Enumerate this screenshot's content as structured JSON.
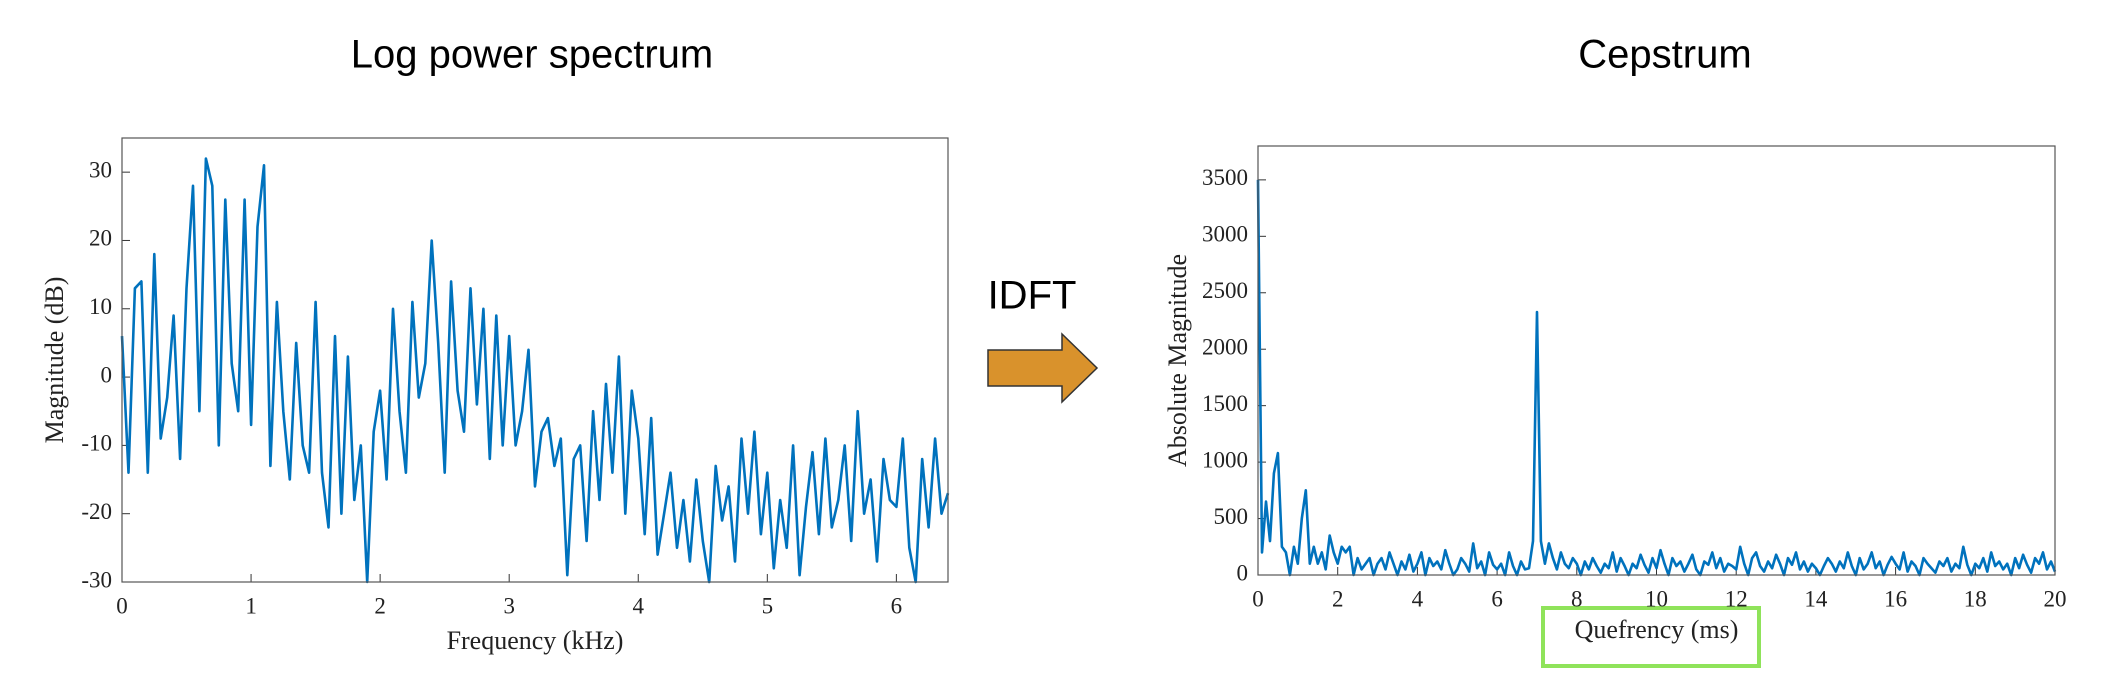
{
  "chart_data": [
    {
      "type": "line",
      "title": "Log power spectrum",
      "x_label": "Frequency (kHz)",
      "y_label": "Magnitude (dB)",
      "xlim": [
        0,
        6.4
      ],
      "xticks": [
        0,
        1,
        2,
        3,
        4,
        5,
        6
      ],
      "ylim": [
        -30,
        35
      ],
      "yticks": [
        -30,
        -20,
        -10,
        0,
        10,
        20,
        30
      ],
      "series": [
        {
          "name": "Log power spectrum",
          "color": "#0072bd",
          "x": [
            0,
            0.05,
            0.1,
            0.15,
            0.2,
            0.25,
            0.3,
            0.35,
            0.4,
            0.45,
            0.5,
            0.55,
            0.6,
            0.65,
            0.7,
            0.75,
            0.8,
            0.85,
            0.9,
            0.95,
            1,
            1.05,
            1.1,
            1.15,
            1.2,
            1.25,
            1.3,
            1.35,
            1.4,
            1.45,
            1.5,
            1.55,
            1.6,
            1.65,
            1.7,
            1.75,
            1.8,
            1.85,
            1.9,
            1.95,
            2,
            2.05,
            2.1,
            2.15,
            2.2,
            2.25,
            2.3,
            2.35,
            2.4,
            2.45,
            2.5,
            2.55,
            2.6,
            2.65,
            2.7,
            2.75,
            2.8,
            2.85,
            2.9,
            2.95,
            3,
            3.05,
            3.1,
            3.15,
            3.2,
            3.25,
            3.3,
            3.35,
            3.4,
            3.45,
            3.5,
            3.55,
            3.6,
            3.65,
            3.7,
            3.75,
            3.8,
            3.85,
            3.9,
            3.95,
            4,
            4.05,
            4.1,
            4.15,
            4.2,
            4.25,
            4.3,
            4.35,
            4.4,
            4.45,
            4.5,
            4.55,
            4.6,
            4.65,
            4.7,
            4.75,
            4.8,
            4.85,
            4.9,
            4.95,
            5,
            5.05,
            5.1,
            5.15,
            5.2,
            5.25,
            5.3,
            5.35,
            5.4,
            5.45,
            5.5,
            5.55,
            5.6,
            5.65,
            5.7,
            5.75,
            5.8,
            5.85,
            5.9,
            5.95,
            6,
            6.05,
            6.1,
            6.15,
            6.2,
            6.25,
            6.3,
            6.35,
            6.4
          ],
          "values": [
            6,
            -14,
            13,
            14,
            -14,
            18,
            -9,
            -3,
            9,
            -12,
            13,
            28,
            -5,
            32,
            28,
            -10,
            26,
            2,
            -5,
            26,
            -7,
            22,
            31,
            -13,
            11,
            -5,
            -15,
            5,
            -10,
            -14,
            11,
            -14,
            -22,
            6,
            -20,
            3,
            -18,
            -10,
            -30,
            -8,
            -2,
            -15,
            10,
            -5,
            -14,
            11,
            -3,
            2,
            20,
            5,
            -14,
            14,
            -2,
            -8,
            13,
            -4,
            10,
            -12,
            9,
            -10,
            6,
            -10,
            -5,
            4,
            -16,
            -8,
            -6,
            -13,
            -9,
            -29,
            -12,
            -10,
            -24,
            -5,
            -18,
            -1,
            -14,
            3,
            -20,
            -2,
            -9,
            -23,
            -6,
            -26,
            -20,
            -14,
            -25,
            -18,
            -27,
            -15,
            -24,
            -30,
            -13,
            -21,
            -16,
            -27,
            -9,
            -20,
            -8,
            -23,
            -14,
            -28,
            -18,
            -25,
            -10,
            -29,
            -19,
            -11,
            -23,
            -9,
            -22,
            -18,
            -10,
            -24,
            -5,
            -20,
            -15,
            -27,
            -12,
            -18,
            -19,
            -9,
            -25,
            -30,
            -12,
            -22,
            -9,
            -20,
            -17
          ]
        }
      ]
    },
    {
      "type": "line",
      "title": "Cepstrum",
      "x_label": "Quefrency (ms)",
      "y_label": "Absolute Magnitude",
      "xlim": [
        0,
        20
      ],
      "xticks": [
        0,
        2,
        4,
        6,
        8,
        10,
        12,
        14,
        16,
        18,
        20
      ],
      "ylim": [
        0,
        3800
      ],
      "yticks": [
        0,
        500,
        1000,
        1500,
        2000,
        2500,
        3000,
        3500
      ],
      "series": [
        {
          "name": "Cepstrum",
          "color": "#0072bd",
          "x": [
            0,
            0.1,
            0.2,
            0.3,
            0.4,
            0.5,
            0.6,
            0.7,
            0.8,
            0.9,
            1,
            1.1,
            1.2,
            1.3,
            1.4,
            1.5,
            1.6,
            1.7,
            1.8,
            1.9,
            2,
            2.1,
            2.2,
            2.3,
            2.4,
            2.5,
            2.6,
            2.7,
            2.8,
            2.9,
            3,
            3.1,
            3.2,
            3.3,
            3.4,
            3.5,
            3.6,
            3.7,
            3.8,
            3.9,
            4,
            4.1,
            4.2,
            4.3,
            4.4,
            4.5,
            4.6,
            4.7,
            4.8,
            4.9,
            5,
            5.1,
            5.2,
            5.3,
            5.4,
            5.5,
            5.6,
            5.7,
            5.8,
            5.9,
            6,
            6.1,
            6.2,
            6.3,
            6.4,
            6.5,
            6.6,
            6.7,
            6.8,
            6.9,
            7,
            7.1,
            7.2,
            7.3,
            7.4,
            7.5,
            7.6,
            7.7,
            7.8,
            7.9,
            8,
            8.1,
            8.2,
            8.3,
            8.4,
            8.5,
            8.6,
            8.7,
            8.8,
            8.9,
            9,
            9.1,
            9.2,
            9.3,
            9.4,
            9.5,
            9.6,
            9.7,
            9.8,
            9.9,
            10,
            10.1,
            10.2,
            10.3,
            10.4,
            10.5,
            10.6,
            10.7,
            10.8,
            10.9,
            11,
            11.1,
            11.2,
            11.3,
            11.4,
            11.5,
            11.6,
            11.7,
            11.8,
            11.9,
            12,
            12.1,
            12.2,
            12.3,
            12.4,
            12.5,
            12.6,
            12.7,
            12.8,
            12.9,
            13,
            13.1,
            13.2,
            13.3,
            13.4,
            13.5,
            13.6,
            13.7,
            13.8,
            13.9,
            14,
            14.1,
            14.2,
            14.3,
            14.4,
            14.5,
            14.6,
            14.7,
            14.8,
            14.9,
            15,
            15.1,
            15.2,
            15.3,
            15.4,
            15.5,
            15.6,
            15.7,
            15.8,
            15.9,
            16,
            16.1,
            16.2,
            16.3,
            16.4,
            16.5,
            16.6,
            16.7,
            16.8,
            16.9,
            17,
            17.1,
            17.2,
            17.3,
            17.4,
            17.5,
            17.6,
            17.7,
            17.8,
            17.9,
            18,
            18.1,
            18.2,
            18.3,
            18.4,
            18.5,
            18.6,
            18.7,
            18.8,
            18.9,
            19,
            19.1,
            19.2,
            19.3,
            19.4,
            19.5,
            19.6,
            19.7,
            19.8,
            19.9,
            20
          ],
          "values": [
            3500,
            200,
            650,
            300,
            900,
            1080,
            250,
            200,
            0,
            250,
            100,
            500,
            750,
            100,
            250,
            100,
            200,
            50,
            350,
            200,
            100,
            250,
            200,
            250,
            0,
            150,
            50,
            100,
            150,
            0,
            100,
            150,
            50,
            200,
            100,
            0,
            120,
            50,
            180,
            30,
            100,
            200,
            0,
            150,
            80,
            120,
            50,
            220,
            100,
            0,
            50,
            150,
            100,
            30,
            280,
            60,
            120,
            0,
            200,
            90,
            50,
            100,
            0,
            200,
            80,
            0,
            120,
            50,
            60,
            300,
            2330,
            300,
            100,
            280,
            150,
            50,
            200,
            100,
            60,
            150,
            100,
            0,
            120,
            50,
            150,
            80,
            20,
            100,
            60,
            200,
            30,
            150,
            80,
            0,
            100,
            60,
            180,
            90,
            20,
            150,
            60,
            220,
            100,
            0,
            150,
            80,
            120,
            30,
            100,
            180,
            50,
            0,
            120,
            90,
            200,
            60,
            150,
            30,
            100,
            80,
            50,
            250,
            100,
            0,
            150,
            200,
            80,
            30,
            120,
            60,
            180,
            100,
            0,
            150,
            90,
            200,
            50,
            120,
            30,
            100,
            60,
            0,
            80,
            150,
            100,
            30,
            120,
            60,
            200,
            80,
            0,
            150,
            50,
            100,
            200,
            60,
            120,
            0,
            90,
            160,
            100,
            50,
            200,
            30,
            120,
            80,
            0,
            150,
            100,
            60,
            20,
            120,
            80,
            150,
            30,
            100,
            60,
            250,
            90,
            0,
            100,
            60,
            150,
            30,
            200,
            80,
            120,
            50,
            100,
            0,
            150,
            60,
            180,
            90,
            20,
            150,
            100,
            200,
            50,
            120,
            30
          ]
        }
      ]
    }
  ],
  "annotation": "IDFT"
}
